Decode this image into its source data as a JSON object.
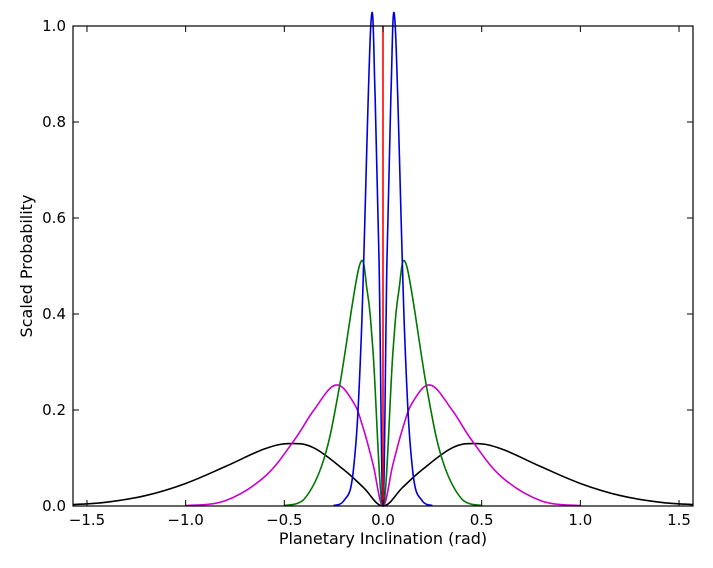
{
  "chart_data": {
    "type": "line",
    "title": "",
    "xlabel": "Planetary Inclination (rad)",
    "ylabel": "Scaled Probability",
    "xlim": [
      -1.5708,
      1.5708
    ],
    "ylim": [
      0.0,
      1.0
    ],
    "grid": false,
    "xticks": [
      "-1.5",
      "-1.0",
      "-0.5",
      "0.0",
      "0.5",
      "1.0",
      "1.5"
    ],
    "xtick_values": [
      -1.5,
      -1.0,
      -0.5,
      0.0,
      0.5,
      1.0,
      1.5
    ],
    "yticks": [
      "0.0",
      "0.2",
      "0.4",
      "0.6",
      "0.8",
      "1.0"
    ],
    "ytick_values": [
      0.0,
      0.2,
      0.4,
      0.6,
      0.8,
      1.0
    ],
    "series": [
      {
        "color": "#000000",
        "x": [
          -1.5708,
          -1.4,
          -1.2,
          -1.0,
          -0.8,
          -0.6,
          -0.47,
          -0.35,
          -0.2,
          -0.1,
          0.0,
          0.1,
          0.2,
          0.35,
          0.47,
          0.6,
          0.8,
          1.0,
          1.2,
          1.4,
          1.5708
        ],
        "y": [
          0.003,
          0.008,
          0.022,
          0.047,
          0.082,
          0.119,
          0.13,
          0.121,
          0.076,
          0.039,
          0.0,
          0.039,
          0.076,
          0.121,
          0.13,
          0.119,
          0.082,
          0.047,
          0.022,
          0.008,
          0.003
        ]
      },
      {
        "color": "#cc00cc",
        "x": [
          -1.0,
          -0.8,
          -0.6,
          -0.45,
          -0.35,
          -0.24,
          -0.15,
          -0.1,
          -0.05,
          0.0,
          0.05,
          0.1,
          0.15,
          0.24,
          0.35,
          0.45,
          0.6,
          0.8,
          1.0
        ],
        "y": [
          0.001,
          0.011,
          0.061,
          0.137,
          0.2,
          0.252,
          0.216,
          0.162,
          0.086,
          0.0,
          0.086,
          0.162,
          0.216,
          0.252,
          0.2,
          0.137,
          0.061,
          0.011,
          0.001
        ]
      },
      {
        "color": "#007700",
        "x": [
          -0.5,
          -0.4,
          -0.3,
          -0.22,
          -0.12,
          -0.08,
          -0.05,
          0.0,
          0.05,
          0.08,
          0.12,
          0.22,
          0.3,
          0.4,
          0.5
        ],
        "y": [
          0.001,
          0.014,
          0.097,
          0.25,
          0.5,
          0.448,
          0.319,
          0.0,
          0.319,
          0.448,
          0.5,
          0.25,
          0.097,
          0.014,
          0.001
        ]
      },
      {
        "color": "#0000dd",
        "x": [
          -0.25,
          -0.2,
          -0.15,
          -0.11,
          -0.062,
          -0.04,
          -0.02,
          0.0,
          0.02,
          0.04,
          0.062,
          0.11,
          0.15,
          0.2,
          0.25
        ],
        "y": [
          0.001,
          0.01,
          0.075,
          0.353,
          1.0,
          0.855,
          0.511,
          0.0,
          0.511,
          0.855,
          1.0,
          0.353,
          0.075,
          0.01,
          0.001
        ]
      },
      {
        "color": "#ff0000",
        "x": [
          0.0,
          0.0
        ],
        "y": [
          0.0,
          1.0
        ]
      }
    ]
  }
}
